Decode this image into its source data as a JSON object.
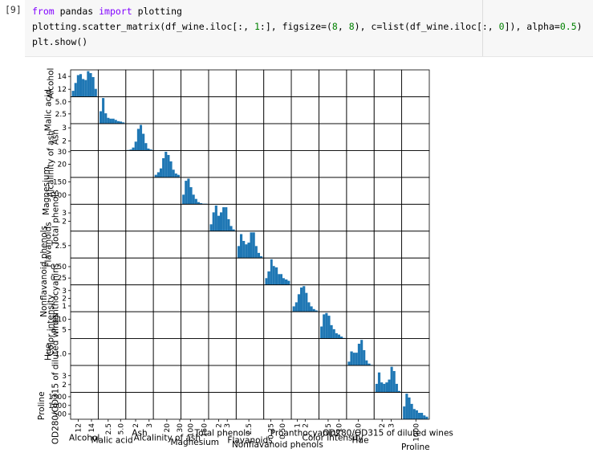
{
  "cell": {
    "prompt": "[9]",
    "code": [
      [
        {
          "text": "from",
          "color": "#8000ff"
        },
        {
          "text": " pandas "
        },
        {
          "text": "import",
          "color": "#8000ff"
        },
        {
          "text": " plotting"
        }
      ],
      [
        {
          "text": "plotting.scatter_matrix(df_wine.iloc[:, "
        },
        {
          "text": "1",
          "color": "#008000"
        },
        {
          "text": ":], figsize=("
        },
        {
          "text": "8",
          "color": "#008000"
        },
        {
          "text": ", "
        },
        {
          "text": "8",
          "color": "#008000"
        },
        {
          "text": "), c=list(df_wine.iloc[:, "
        },
        {
          "text": "0",
          "color": "#008000"
        },
        {
          "text": "]), alpha="
        },
        {
          "text": "0.5",
          "color": "#008000"
        },
        {
          "text": ")"
        }
      ],
      [
        {
          "text": "plt.show()"
        }
      ]
    ]
  },
  "chart_data": {
    "type": "scatter_matrix",
    "hist_color": "#1f77b4",
    "variables": [
      {
        "name": "Alcohol",
        "lim": [
          10.84,
          15.02
        ],
        "yticks": [
          12,
          14
        ],
        "xticks": [
          12,
          14
        ],
        "bins": [
          11.03,
          11.41,
          11.79,
          12.17,
          12.55,
          12.93,
          13.31,
          13.69,
          14.07,
          14.45,
          14.83
        ],
        "counts": [
          6,
          14,
          22,
          23,
          18,
          17,
          26,
          24,
          20,
          8
        ]
      },
      {
        "name": "Malic acid",
        "lim": [
          0.49,
          6.05
        ],
        "yticks": [
          2.5,
          {
            "value": 5,
            "label": "5.0"
          }
        ],
        "xticks": [
          2.5,
          {
            "value": 5,
            "label": "5.0"
          }
        ],
        "bins": [
          0.74,
          1.25,
          1.75,
          2.26,
          2.76,
          3.27,
          3.78,
          4.28,
          4.79,
          5.29,
          5.8
        ],
        "counts": [
          30,
          62,
          25,
          14,
          12,
          12,
          9,
          6,
          5,
          3
        ]
      },
      {
        "name": "Ash",
        "lim": [
          1.27,
          3.32
        ],
        "yticks": [
          2,
          3
        ],
        "xticks": [
          2,
          3
        ],
        "bins": [
          1.36,
          1.55,
          1.73,
          1.92,
          2.11,
          2.3,
          2.48,
          2.67,
          2.86,
          3.04,
          3.23
        ],
        "counts": [
          1,
          2,
          6,
          18,
          44,
          52,
          34,
          15,
          4,
          2
        ]
      },
      {
        "name": "Alcalinity of ash",
        "lim": [
          9.63,
          30.97
        ],
        "yticks": [
          20,
          30
        ],
        "xticks": [
          20,
          30
        ],
        "bins": [
          10.6,
          12.54,
          14.48,
          16.42,
          18.36,
          20.3,
          22.24,
          24.18,
          26.12,
          28.06,
          30
        ],
        "counts": [
          4,
          8,
          14,
          30,
          40,
          35,
          25,
          12,
          6,
          4
        ]
      },
      {
        "name": "Magnesium",
        "lim": [
          65.4,
          166.6
        ],
        "yticks": [
          100,
          150
        ],
        "xticks": [
          100,
          150
        ],
        "bins": [
          70,
          79.2,
          88.4,
          97.6,
          106.8,
          116,
          125.2,
          134.4,
          143.6,
          152.8,
          162
        ],
        "counts": [
          18,
          44,
          48,
          32,
          18,
          10,
          4,
          2,
          1,
          1
        ]
      },
      {
        "name": "Total phenols",
        "lim": [
          0.83,
          4.03
        ],
        "yticks": [
          2,
          3
        ],
        "xticks": [
          2,
          3
        ],
        "bins": [
          0.98,
          1.27,
          1.56,
          1.85,
          2.14,
          2.43,
          2.72,
          3.01,
          3.3,
          3.59,
          3.88
        ],
        "counts": [
          8,
          22,
          30,
          18,
          22,
          28,
          28,
          14,
          6,
          2
        ]
      },
      {
        "name": "Flavanoids",
        "lim": [
          0.1,
          5.32
        ],
        "yticks": [
          2.5
        ],
        "xticks": [
          2.5
        ],
        "bins": [
          0.34,
          0.81,
          1.29,
          1.76,
          2.24,
          2.71,
          3.18,
          3.66,
          4.13,
          4.61,
          5.08
        ],
        "counts": [
          14,
          28,
          20,
          16,
          18,
          30,
          30,
          14,
          6,
          2
        ]
      },
      {
        "name": "Nonflavanoid phenols",
        "lim": [
          0.1,
          0.69
        ],
        "yticks": [
          0.25,
          {
            "value": 0.5,
            "label": "0.50"
          }
        ],
        "xticks": [
          0.25,
          {
            "value": 0.5,
            "label": "0.50"
          }
        ],
        "bins": [
          0.13,
          0.18,
          0.24,
          0.29,
          0.34,
          0.4,
          0.45,
          0.5,
          0.55,
          0.61,
          0.66
        ],
        "counts": [
          10,
          20,
          38,
          28,
          26,
          16,
          16,
          10,
          8,
          6
        ]
      },
      {
        "name": "Proanthocyanins",
        "lim": [
          0.25,
          3.74
        ],
        "yticks": [
          1,
          2,
          3
        ],
        "xticks": [
          1,
          2
        ],
        "bins": [
          0.41,
          0.73,
          1.04,
          1.36,
          1.68,
          2.0,
          2.31,
          2.63,
          2.95,
          3.26,
          3.58
        ],
        "counts": [
          8,
          14,
          26,
          36,
          38,
          28,
          14,
          8,
          4,
          2
        ]
      },
      {
        "name": "Color intensity",
        "lim": [
          0.69,
          13.59
        ],
        "yticks": [
          5,
          10
        ],
        "xticks": [
          5,
          10
        ],
        "bins": [
          1.28,
          2.45,
          3.62,
          4.8,
          5.97,
          7.14,
          8.31,
          9.48,
          10.66,
          11.83,
          13
        ],
        "counts": [
          18,
          36,
          38,
          34,
          20,
          14,
          8,
          6,
          3,
          1
        ]
      },
      {
        "name": "Hue",
        "lim": [
          0.42,
          1.77
        ],
        "yticks": [
          {
            "value": 1,
            "label": "1.0"
          }
        ],
        "xticks": [
          {
            "value": 1,
            "label": "1.0"
          }
        ],
        "bins": [
          0.48,
          0.6,
          0.73,
          0.85,
          0.97,
          1.1,
          1.22,
          1.34,
          1.46,
          1.59,
          1.71
        ],
        "counts": [
          6,
          22,
          20,
          20,
          34,
          40,
          24,
          8,
          3,
          1
        ]
      },
      {
        "name": "OD280/OD315 of diluted wines",
        "lim": [
          1.13,
          4.14
        ],
        "yticks": [
          2,
          3
        ],
        "xticks": [
          2,
          3
        ],
        "bins": [
          1.27,
          1.54,
          1.82,
          2.09,
          2.36,
          2.64,
          2.91,
          3.18,
          3.45,
          3.73,
          4
        ],
        "counts": [
          12,
          28,
          14,
          12,
          14,
          18,
          36,
          30,
          12,
          2
        ]
      },
      {
        "name": "Proline",
        "lim": [
          208,
          1750
        ],
        "yticks": [
          500,
          1000,
          1500
        ],
        "xticks": [
          1000
        ],
        "bins": [
          278,
          418.2,
          558.4,
          698.6,
          838.8,
          979,
          1119.2,
          1259.4,
          1399.6,
          1539.8,
          1680
        ],
        "counts": [
          20,
          40,
          34,
          24,
          16,
          14,
          10,
          10,
          6,
          4
        ]
      }
    ]
  }
}
